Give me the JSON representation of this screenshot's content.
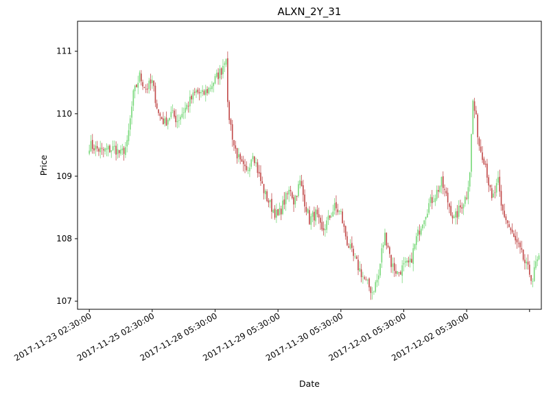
{
  "chart_data": {
    "type": "candlestick",
    "title": "ALXN_2Y_31",
    "xlabel": "Date",
    "ylabel": "Price",
    "ylim": [
      106.87,
      111.48
    ],
    "yticks": [
      107,
      108,
      109,
      110,
      111
    ],
    "xtick_labels": [
      "2017-11-23 02:30:00",
      "2017-11-25 02:30:00",
      "2017-11-28 05:30:00",
      "2017-11-29 05:30:00",
      "2017-11-30 05:30:00",
      "2017-12-01 05:30:00",
      "2017-12-02 05:30:00",
      ""
    ],
    "tick_every_n_bars": 40,
    "x_index_range": [
      -7.5,
      287.5
    ],
    "grid": false,
    "legend": "none",
    "colors": {
      "up": "#77d879",
      "down": "#c14a4a"
    },
    "close_path": [
      [
        0,
        109.5
      ],
      [
        8,
        109.4
      ],
      [
        16,
        109.45
      ],
      [
        20,
        109.35
      ],
      [
        24,
        109.5
      ],
      [
        28,
        110.3
      ],
      [
        32,
        110.6
      ],
      [
        36,
        110.4
      ],
      [
        40,
        110.5
      ],
      [
        44,
        110.0
      ],
      [
        48,
        109.85
      ],
      [
        52,
        110.0
      ],
      [
        56,
        109.9
      ],
      [
        60,
        110.05
      ],
      [
        64,
        110.2
      ],
      [
        68,
        110.35
      ],
      [
        72,
        110.3
      ],
      [
        76,
        110.4
      ],
      [
        80,
        110.55
      ],
      [
        84,
        110.7
      ],
      [
        87,
        110.95
      ],
      [
        88,
        110.1
      ],
      [
        92,
        109.5
      ],
      [
        96,
        109.2
      ],
      [
        100,
        109.05
      ],
      [
        104,
        109.4
      ],
      [
        108,
        109.0
      ],
      [
        112,
        108.7
      ],
      [
        116,
        108.5
      ],
      [
        120,
        108.35
      ],
      [
        124,
        108.6
      ],
      [
        128,
        108.8
      ],
      [
        130,
        108.6
      ],
      [
        134,
        108.9
      ],
      [
        136,
        108.7
      ],
      [
        140,
        108.3
      ],
      [
        144,
        108.4
      ],
      [
        148,
        108.1
      ],
      [
        152,
        108.3
      ],
      [
        156,
        108.5
      ],
      [
        160,
        108.4
      ],
      [
        162,
        108.15
      ],
      [
        164,
        107.95
      ],
      [
        168,
        107.7
      ],
      [
        172,
        107.5
      ],
      [
        176,
        107.3
      ],
      [
        180,
        107.15
      ],
      [
        184,
        107.4
      ],
      [
        186,
        107.8
      ],
      [
        188,
        108.05
      ],
      [
        190,
        107.9
      ],
      [
        192,
        107.6
      ],
      [
        196,
        107.45
      ],
      [
        200,
        107.55
      ],
      [
        204,
        107.6
      ],
      [
        208,
        108.0
      ],
      [
        212,
        108.3
      ],
      [
        216,
        108.55
      ],
      [
        220,
        108.7
      ],
      [
        224,
        108.9
      ],
      [
        228,
        108.6
      ],
      [
        232,
        108.3
      ],
      [
        236,
        108.5
      ],
      [
        240,
        108.7
      ],
      [
        242,
        109.1
      ],
      [
        244,
        110.2
      ],
      [
        246,
        109.9
      ],
      [
        248,
        109.5
      ],
      [
        252,
        109.2
      ],
      [
        256,
        108.6
      ],
      [
        260,
        108.9
      ],
      [
        262,
        108.5
      ],
      [
        266,
        108.25
      ],
      [
        270,
        108.0
      ],
      [
        274,
        107.8
      ],
      [
        278,
        107.55
      ],
      [
        282,
        107.35
      ],
      [
        284,
        107.6
      ],
      [
        286,
        107.65
      ]
    ],
    "series_note": ""
  }
}
